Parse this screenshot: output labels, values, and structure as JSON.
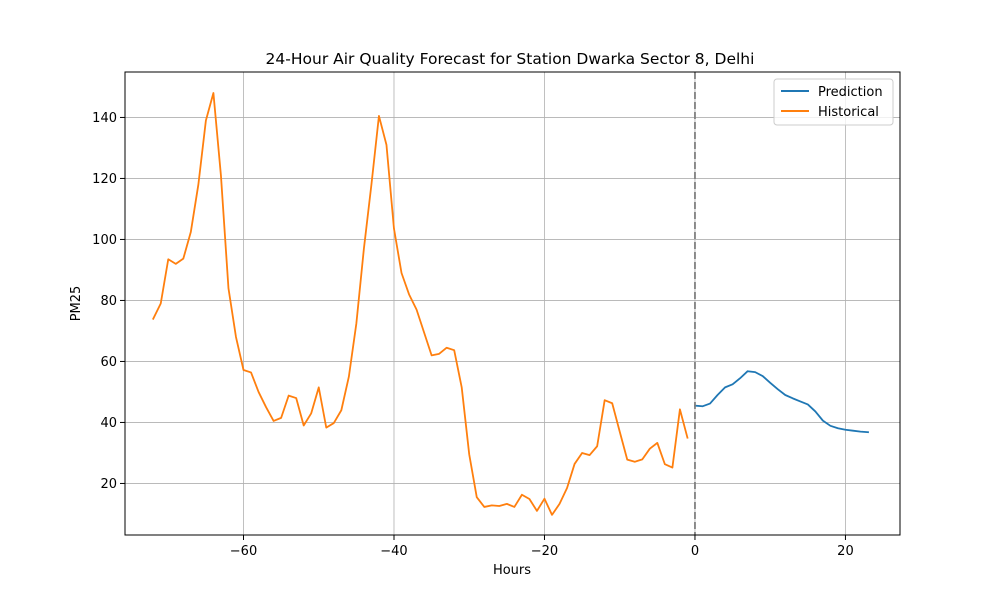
{
  "chart_data": {
    "type": "line",
    "title": "24-Hour Air Quality Forecast for Station Dwarka Sector 8, Delhi",
    "xlabel": "Hours",
    "ylabel": "PM25",
    "xlim": [
      -75.75,
      27.25
    ],
    "ylim": [
      3.1,
      154.9
    ],
    "xticks": [
      -60,
      -40,
      -20,
      0,
      20
    ],
    "xtick_labels": [
      "−60",
      "−40",
      "−20",
      "0",
      "20"
    ],
    "yticks": [
      20,
      40,
      60,
      80,
      100,
      120,
      140
    ],
    "ytick_labels": [
      "20",
      "40",
      "60",
      "80",
      "100",
      "120",
      "140"
    ],
    "grid": true,
    "legend_position": "top-right",
    "vline": {
      "x": 0,
      "style": "dashed",
      "color": "#808080"
    },
    "series": [
      {
        "name": "Prediction",
        "color": "#1f77b4",
        "x": [
          0,
          1,
          2,
          3,
          4,
          5,
          6,
          7,
          8,
          9,
          10,
          11,
          12,
          13,
          14,
          15,
          16,
          17,
          18,
          19,
          20,
          21,
          22,
          23
        ],
        "y": [
          45.5,
          45.3,
          46.2,
          49.0,
          51.5,
          52.5,
          54.5,
          56.8,
          56.5,
          55.2,
          53.0,
          50.9,
          49.0,
          47.9,
          46.9,
          45.9,
          43.6,
          40.6,
          38.9,
          38.1,
          37.6,
          37.3,
          37.0,
          36.8
        ]
      },
      {
        "name": "Historical",
        "color": "#ff7f0e",
        "x": [
          -72,
          -71,
          -70,
          -69,
          -68,
          -67,
          -66,
          -65,
          -64,
          -63,
          -62,
          -61,
          -60,
          -59,
          -58,
          -57,
          -56,
          -55,
          -54,
          -53,
          -52,
          -51,
          -50,
          -49,
          -48,
          -47,
          -46,
          -45,
          -44,
          -43,
          -42,
          -41,
          -40,
          -39,
          -38,
          -37,
          -36,
          -35,
          -34,
          -33,
          -32,
          -31,
          -30,
          -29,
          -28,
          -27,
          -26,
          -25,
          -24,
          -23,
          -22,
          -21,
          -20,
          -19,
          -18,
          -17,
          -16,
          -15,
          -14,
          -13,
          -12,
          -11,
          -10,
          -9,
          -8,
          -7,
          -6,
          -5,
          -4,
          -3,
          -2,
          -1
        ],
        "y": [
          74.0,
          79.0,
          93.5,
          92.0,
          93.7,
          102.5,
          118.0,
          139.0,
          148.0,
          121.0,
          84.0,
          68.0,
          57.2,
          56.4,
          50.0,
          45.0,
          40.5,
          41.5,
          48.8,
          48.0,
          39.0,
          43.0,
          51.5,
          38.3,
          39.8,
          44.0,
          55.0,
          72.5,
          97.0,
          118.0,
          140.5,
          131.0,
          103.5,
          89.0,
          82.0,
          77.0,
          69.5,
          62.0,
          62.5,
          64.5,
          63.7,
          51.5,
          29.5,
          15.5,
          12.3,
          12.8,
          12.6,
          13.3,
          12.3,
          16.3,
          14.9,
          11.0,
          15.0,
          9.7,
          13.3,
          18.5,
          26.4,
          30.0,
          29.3,
          32.2,
          47.3,
          46.3,
          37.0,
          27.8,
          27.1,
          27.9,
          31.4,
          33.3,
          26.3,
          25.2,
          44.3,
          35.0
        ]
      }
    ]
  }
}
